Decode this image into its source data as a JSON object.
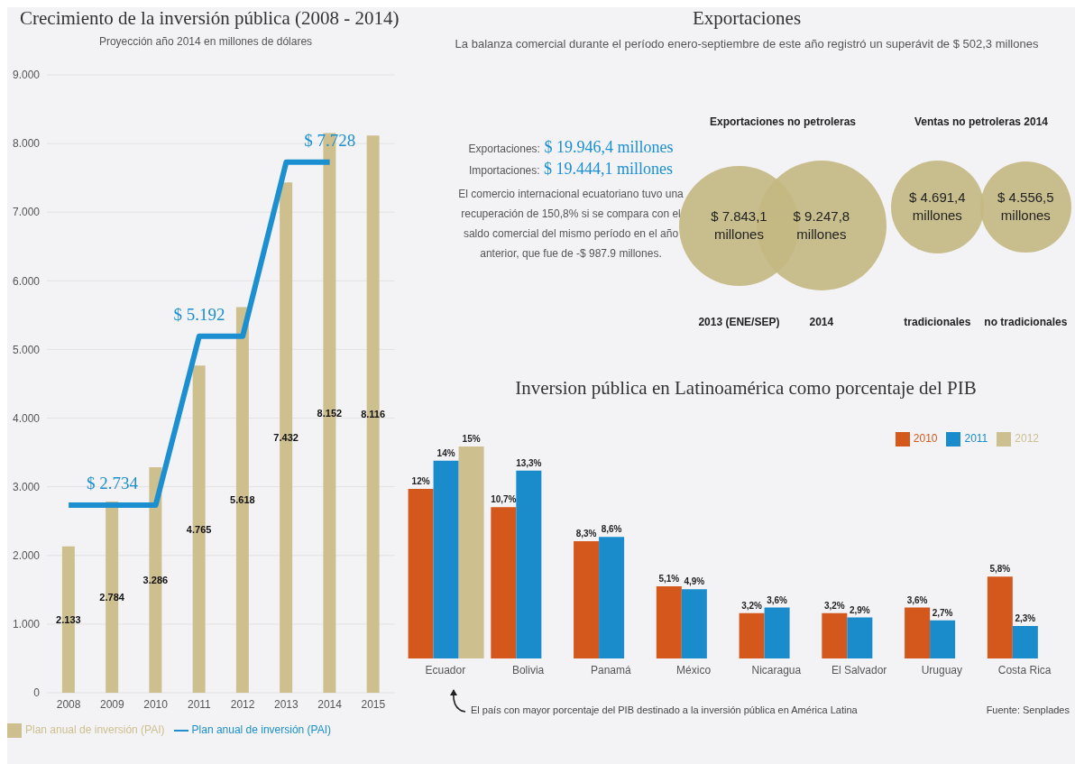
{
  "chart_data": [
    {
      "type": "bar",
      "title": "Crecimiento de la inversión pública (2008 - 2014)",
      "subtitle": "Proyección año 2014 en millones de dólares",
      "categories": [
        "2008",
        "2009",
        "2010",
        "2011",
        "2012",
        "2013",
        "2014",
        "2015"
      ],
      "series": [
        {
          "name": "Plan anual de inversión (PAI)",
          "type": "bar",
          "color": "#cdbf8e",
          "values": [
            2133,
            2784,
            3286,
            4765,
            5618,
            7432,
            8152,
            8116
          ],
          "value_labels": [
            "2.133",
            "2.784",
            "3.286",
            "4.765",
            "5.618",
            "7.432",
            "8.152",
            "8.116"
          ]
        },
        {
          "name": "Plan anual de inversión (PAI)",
          "type": "line",
          "color": "#1b8fd0",
          "values": [
            2734,
            2734,
            2734,
            5192,
            5192,
            7728,
            7728,
            null
          ]
        }
      ],
      "ylim": [
        0,
        9000
      ],
      "yticks": [
        0,
        {
          "value": 1000,
          "label": "1.000"
        },
        {
          "value": 2000,
          "label": "2.000"
        },
        {
          "value": 3000,
          "label": "3.000"
        },
        {
          "value": 4000,
          "label": "4.000"
        },
        {
          "value": 5000,
          "label": "5.000"
        },
        {
          "value": 6000,
          "label": "6.000"
        },
        {
          "value": 7000,
          "label": "7.000"
        },
        {
          "value": 8000,
          "label": "8.000"
        },
        {
          "value": 9000,
          "label": "9.000"
        }
      ],
      "annotations": [
        {
          "text": "$ 2.734",
          "x": "2009",
          "y": 2734
        },
        {
          "text": "$ 5.192",
          "x": "2011",
          "y": 5192
        },
        {
          "text": "$ 7.728",
          "x": "2014",
          "y": 7728
        }
      ],
      "grid": "y",
      "legend": "bottom left",
      "marker": "none"
    },
    {
      "type": "other",
      "title": "Exportaciones",
      "subtitle": "La balanza comercial durante el período enero-septiembre de este año registró un superávit de $ 502,3 millones",
      "annotations": [
        "Exportaciones: $ 19.946,4 millones",
        "Importaciones: $ 19.444,1 millones",
        "El comercio internacional ecuatoriano tuvo una recuperación de 150,8% si se compara con el saldo comercial del mismo período en el año anterior, que fue de -$ 987.9 millones."
      ]
    },
    {
      "type": "other",
      "title": "Exportaciones no petroleras",
      "categories": [
        "2013 (ENE/SEP)",
        "2014"
      ],
      "values": [
        7843.1,
        9247.8
      ],
      "value_labels": [
        "$ 7.843,1 millones",
        "$ 9.247,8 millones"
      ],
      "color": "#c4b882"
    },
    {
      "type": "other",
      "title": "Ventas no petroleras 2014",
      "categories": [
        "tradicionales",
        "no tradicionales"
      ],
      "values": [
        4691.4,
        4556.5
      ],
      "value_labels": [
        "$ 4.691,4 millones",
        "$ 4.556,5 millones"
      ],
      "color": "#c4b882"
    },
    {
      "type": "bar",
      "title": "Inversion pública en Latinoamérica como porcentaje del PIB",
      "categories": [
        "Ecuador",
        "Bolivia",
        "Panamá",
        "México",
        "Nicaragua",
        "El Salvador",
        "Uruguay",
        "Costa Rica"
      ],
      "series": [
        {
          "name": "2010",
          "color": "#d4581c",
          "values": [
            12,
            10.7,
            8.3,
            5.1,
            3.2,
            3.2,
            3.6,
            5.8
          ],
          "value_labels": [
            "12%",
            "10,7%",
            "8,3%",
            "5,1%",
            "3,2%",
            "3,2%",
            "3,6%",
            "5,8%"
          ]
        },
        {
          "name": "2011",
          "color": "#1a8ccc",
          "values": [
            14,
            13.3,
            8.6,
            4.9,
            3.6,
            2.9,
            2.7,
            2.3
          ],
          "value_labels": [
            "14%",
            "13,3%",
            "8,6%",
            "4,9%",
            "3,6%",
            "2,9%",
            "2,7%",
            "2,3%"
          ]
        },
        {
          "name": "2012",
          "color": "#cdbf8e",
          "values": [
            15,
            null,
            null,
            null,
            null,
            null,
            null,
            null
          ],
          "value_labels": [
            "15%",
            null,
            null,
            null,
            null,
            null,
            null,
            null
          ]
        }
      ],
      "annotations": [
        "El país con mayor porcentaje del PIB destinado a la inversión pública en América Latina",
        "Fuente: Senplades"
      ],
      "legend": "top right"
    }
  ]
}
